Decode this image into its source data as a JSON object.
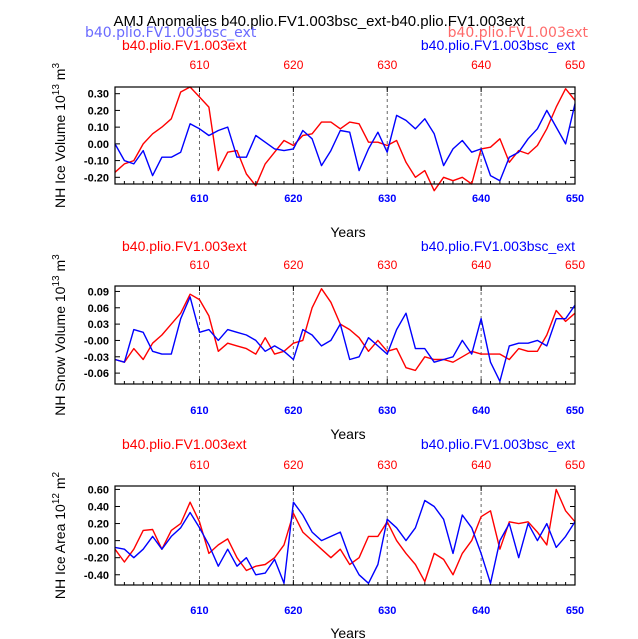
{
  "title": "AMJ Anomalies b40.plio.FV1.003bsc_ext-b40.plio.FV1.003ext",
  "overlay_labels": {
    "left": "b40.plio.FV1.003bsc_ext",
    "right": "b40.plio.FV1.003ext"
  },
  "colors": {
    "red_series": "#ff0000",
    "blue_series": "#0000ff",
    "guide": "#666666"
  },
  "chart_data": [
    {
      "type": "line",
      "ylabel": "NH Ice Volume 10",
      "ylabel_exp": "13",
      "ylabel_unit": " m",
      "ylabel_unit_exp": "3",
      "xlabel": "Years",
      "header_left": "b40.plio.FV1.003ext",
      "header_right": "b40.plio.FV1.003bsc_ext",
      "xlim": [
        601,
        650
      ],
      "ylim": [
        -0.24,
        0.34
      ],
      "yticks": [
        0.3,
        0.2,
        0.1,
        0.0,
        -0.1,
        -0.2
      ],
      "ytick_labels": [
        "0.30",
        "0.20",
        "0.10",
        "0.00",
        "-0.10",
        "-0.20"
      ],
      "xticks": [
        610,
        620,
        630,
        640,
        650
      ],
      "xtick_labels": [
        "610",
        "620",
        "630",
        "640",
        "650"
      ],
      "guides": [
        610,
        620,
        630,
        640
      ],
      "x": [
        601,
        602,
        603,
        604,
        605,
        606,
        607,
        608,
        609,
        610,
        611,
        612,
        613,
        614,
        615,
        616,
        617,
        618,
        619,
        620,
        621,
        622,
        623,
        624,
        625,
        626,
        627,
        628,
        629,
        630,
        631,
        632,
        633,
        634,
        635,
        636,
        637,
        638,
        639,
        640,
        641,
        642,
        643,
        644,
        645,
        646,
        647,
        648,
        649,
        650
      ],
      "series": [
        {
          "name": "b40.plio.FV1.003ext",
          "color": "#ff0000",
          "values": [
            -0.17,
            -0.12,
            -0.1,
            0.0,
            0.06,
            0.1,
            0.15,
            0.31,
            0.34,
            0.28,
            0.22,
            -0.16,
            -0.05,
            -0.04,
            -0.18,
            -0.25,
            -0.12,
            -0.05,
            0.02,
            -0.01,
            0.05,
            0.06,
            0.13,
            0.13,
            0.09,
            0.13,
            0.12,
            0.01,
            0.01,
            -0.01,
            0.02,
            -0.11,
            -0.2,
            -0.16,
            -0.28,
            -0.2,
            -0.22,
            -0.2,
            -0.24,
            -0.03,
            -0.02,
            0.03,
            -0.11,
            -0.04,
            -0.06,
            -0.01,
            0.09,
            0.22,
            0.33,
            0.26
          ]
        },
        {
          "name": "b40.plio.FV1.003bsc_ext",
          "color": "#0000ff",
          "values": [
            0.0,
            -0.1,
            -0.12,
            -0.04,
            -0.19,
            -0.08,
            -0.08,
            -0.05,
            0.12,
            0.09,
            0.05,
            0.08,
            0.1,
            -0.08,
            -0.08,
            0.05,
            0.01,
            -0.03,
            -0.04,
            -0.03,
            0.08,
            0.03,
            -0.13,
            -0.04,
            0.08,
            0.07,
            -0.16,
            -0.03,
            0.07,
            -0.05,
            0.17,
            0.14,
            0.09,
            0.15,
            0.06,
            -0.13,
            -0.03,
            0.02,
            -0.05,
            -0.03,
            -0.19,
            -0.22,
            -0.08,
            -0.05,
            0.03,
            0.09,
            0.2,
            0.1,
            0.0,
            0.24
          ]
        }
      ]
    },
    {
      "type": "line",
      "ylabel": "NH Snow Volume 10",
      "ylabel_exp": "13",
      "ylabel_unit": " m",
      "ylabel_unit_exp": "3",
      "xlabel": "Years",
      "header_left": "b40.plio.FV1.003ext",
      "header_right": "b40.plio.FV1.003bsc_ext",
      "xlim": [
        601,
        650
      ],
      "ylim": [
        -0.08,
        0.1
      ],
      "yticks": [
        0.09,
        0.06,
        0.03,
        0.0,
        -0.03,
        -0.06
      ],
      "ytick_labels": [
        "0.09",
        "0.06",
        "0.03",
        "-0.00",
        "-0.03",
        "-0.06"
      ],
      "xticks": [
        610,
        620,
        630,
        640,
        650
      ],
      "xtick_labels": [
        "610",
        "620",
        "630",
        "640",
        "650"
      ],
      "guides": [
        610,
        620,
        630,
        640
      ],
      "x": [
        601,
        602,
        603,
        604,
        605,
        606,
        607,
        608,
        609,
        610,
        611,
        612,
        613,
        614,
        615,
        616,
        617,
        618,
        619,
        620,
        621,
        622,
        623,
        624,
        625,
        626,
        627,
        628,
        629,
        630,
        631,
        632,
        633,
        634,
        635,
        636,
        637,
        638,
        639,
        640,
        641,
        642,
        643,
        644,
        645,
        646,
        647,
        648,
        649,
        650
      ],
      "series": [
        {
          "name": "b40.plio.FV1.003ext",
          "color": "#ff0000",
          "values": [
            -0.035,
            -0.04,
            -0.015,
            -0.035,
            -0.005,
            0.01,
            0.03,
            0.05,
            0.085,
            0.075,
            0.045,
            -0.02,
            -0.005,
            -0.01,
            -0.015,
            -0.025,
            0.005,
            -0.025,
            -0.02,
            -0.005,
            0.0,
            0.06,
            0.095,
            0.07,
            0.03,
            0.02,
            0.005,
            -0.02,
            0.0,
            -0.02,
            -0.015,
            -0.05,
            -0.055,
            -0.03,
            -0.035,
            -0.035,
            -0.04,
            -0.03,
            -0.02,
            -0.025,
            -0.025,
            -0.025,
            -0.035,
            -0.015,
            -0.02,
            -0.02,
            0.01,
            0.055,
            0.035,
            0.05
          ]
        },
        {
          "name": "b40.plio.FV1.003bsc_ext",
          "color": "#0000ff",
          "values": [
            -0.035,
            -0.04,
            0.02,
            0.015,
            -0.02,
            -0.025,
            -0.025,
            0.04,
            0.08,
            0.015,
            0.02,
            0.0,
            0.02,
            0.015,
            0.01,
            0.0,
            -0.02,
            -0.01,
            -0.02,
            -0.035,
            0.02,
            0.01,
            -0.01,
            0.0,
            0.03,
            -0.035,
            -0.03,
            0.005,
            -0.01,
            -0.025,
            0.02,
            0.05,
            -0.015,
            -0.015,
            -0.04,
            -0.035,
            -0.03,
            0.0,
            -0.025,
            0.04,
            -0.04,
            -0.075,
            -0.01,
            -0.005,
            -0.005,
            0.0,
            -0.01,
            0.04,
            0.04,
            0.065
          ]
        }
      ]
    },
    {
      "type": "line",
      "ylabel": "NH Ice Area 10",
      "ylabel_exp": "12",
      "ylabel_unit": " m",
      "ylabel_unit_exp": "2",
      "xlabel": "Years",
      "header_left": "b40.plio.FV1.003ext",
      "header_right": "b40.plio.FV1.003bsc_ext",
      "xlim": [
        601,
        650
      ],
      "ylim": [
        -0.52,
        0.64
      ],
      "yticks": [
        0.6,
        0.4,
        0.2,
        0.0,
        -0.2,
        -0.4
      ],
      "ytick_labels": [
        "0.60",
        "0.40",
        "0.20",
        "0.00",
        "-0.20",
        "-0.40"
      ],
      "xticks": [
        610,
        620,
        630,
        640,
        650
      ],
      "xtick_labels": [
        "610",
        "620",
        "630",
        "640",
        "650"
      ],
      "guides": [
        610,
        620,
        630,
        640
      ],
      "x": [
        601,
        602,
        603,
        604,
        605,
        606,
        607,
        608,
        609,
        610,
        611,
        612,
        613,
        614,
        615,
        616,
        617,
        618,
        619,
        620,
        621,
        622,
        623,
        624,
        625,
        626,
        627,
        628,
        629,
        630,
        631,
        632,
        633,
        634,
        635,
        636,
        637,
        638,
        639,
        640,
        641,
        642,
        643,
        644,
        645,
        646,
        647,
        648,
        649,
        650
      ],
      "series": [
        {
          "name": "b40.plio.FV1.003ext",
          "color": "#ff0000",
          "values": [
            -0.1,
            -0.25,
            -0.1,
            0.12,
            0.13,
            -0.1,
            0.12,
            0.2,
            0.45,
            0.22,
            -0.15,
            -0.05,
            0.02,
            -0.2,
            -0.35,
            -0.3,
            -0.28,
            -0.2,
            -0.05,
            0.32,
            0.1,
            0.0,
            -0.1,
            -0.2,
            -0.1,
            -0.28,
            -0.2,
            0.05,
            0.05,
            0.22,
            0.0,
            -0.15,
            -0.28,
            -0.48,
            -0.15,
            -0.22,
            -0.4,
            -0.15,
            0.0,
            0.28,
            0.35,
            -0.1,
            0.22,
            0.2,
            0.22,
            0.1,
            -0.05,
            0.6,
            0.35,
            0.22
          ]
        },
        {
          "name": "b40.plio.FV1.003bsc_ext",
          "color": "#0000ff",
          "values": [
            -0.08,
            -0.1,
            -0.2,
            -0.1,
            0.05,
            -0.1,
            0.05,
            0.15,
            0.33,
            0.15,
            -0.05,
            -0.3,
            -0.1,
            -0.3,
            -0.2,
            -0.4,
            -0.38,
            -0.22,
            -0.5,
            0.45,
            0.3,
            0.1,
            0.0,
            0.05,
            0.1,
            -0.2,
            -0.4,
            -0.5,
            -0.28,
            0.25,
            0.15,
            0.0,
            0.15,
            0.47,
            0.4,
            0.25,
            -0.15,
            0.3,
            0.15,
            -0.15,
            -0.5,
            0.0,
            0.2,
            -0.2,
            0.2,
            0.0,
            0.2,
            -0.08,
            0.05,
            0.22
          ]
        }
      ]
    }
  ]
}
